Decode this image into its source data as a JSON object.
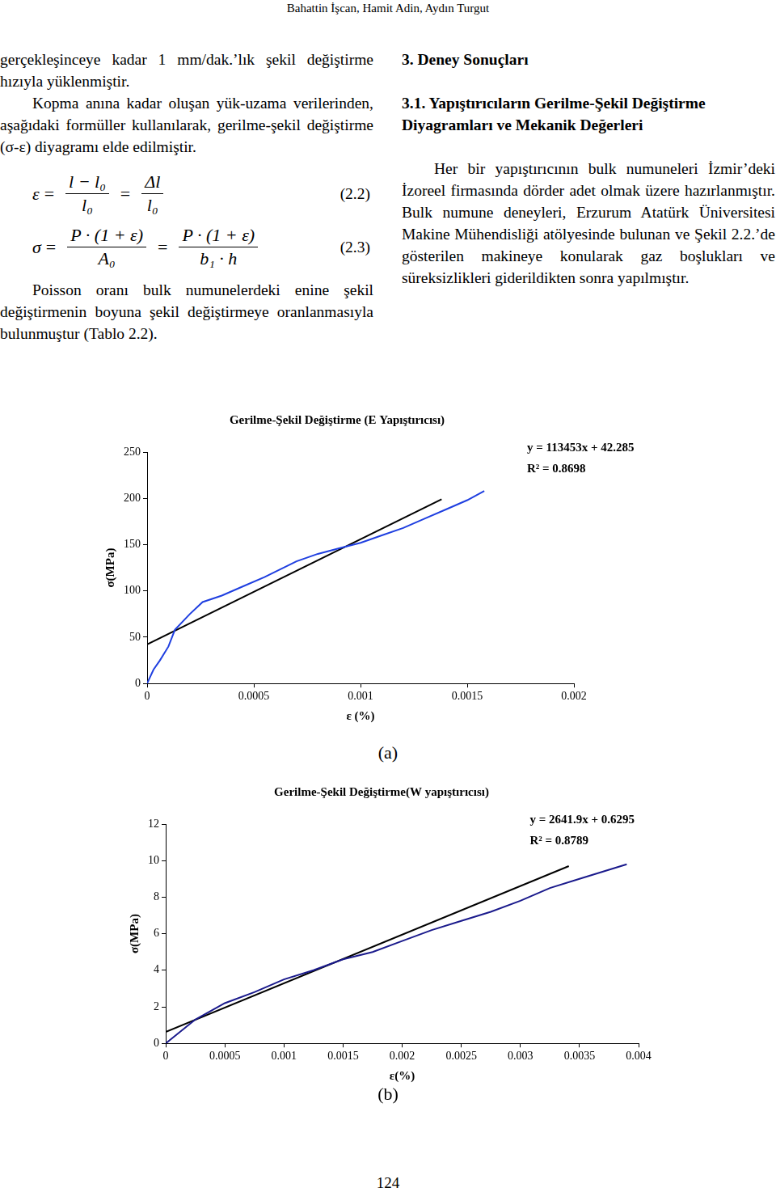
{
  "header": "Bahattin İşcan, Hamit Adin, Aydın Turgut",
  "left_column": {
    "p1": "gerçekleşinceye kadar 1 mm/dak.’lık şekil değiştirme hızıyla yüklenmiştir.",
    "p2": "Kopma anına kadar oluşan yük-uzama verilerinden, aşağıdaki formüller kullanılarak, gerilme-şekil değiştirme (σ-ε) diyagramı elde edilmiştir.",
    "equations": [
      {
        "lhs": "ε",
        "terms": [
          {
            "num": "l − l₀",
            "den": "l₀"
          },
          {
            "num": "Δl",
            "den": "l₀"
          }
        ],
        "number": "(2.2)"
      },
      {
        "lhs": "σ",
        "terms": [
          {
            "num": "P · (1 + ε)",
            "den": "A₀"
          },
          {
            "num": "P · (1 + ε)",
            "den": "b₁ · h"
          }
        ],
        "number": "(2.3)"
      }
    ],
    "p3": "Poisson oranı bulk numunelerdeki enine şekil değiştirmenin boyuna şekil değiştirmeye oranlanmasıyla bulunmuştur (Tablo 2.2)."
  },
  "right_column": {
    "heading": "3. Deney Sonuçları",
    "subheading": "3.1. Yapıştırıcıların Gerilme-Şekil Değiştirme Diyagramları ve Mekanik Değerleri",
    "p1": "Her bir yapıştırıcının bulk numuneleri İzmir’deki İzoreel firmasında dörder adet olmak üzere hazırlanmıştır. Bulk numune deneyleri, Erzurum Atatürk Üniversitesi Makine Mühendisliği atölyesinde bulunan ve Şekil 2.2.’de gösterilen makineye konularak gaz boşlukları ve süreksizlikleri giderildikten sonra yapılmıştır."
  },
  "chart_data": [
    {
      "type": "line",
      "title": "Gerilme-Şekil Değiştirme (E Yapıştırıcısı)",
      "x_label": "ε (%)",
      "y_label": "σ(MPa)",
      "caption": "(a)",
      "annotations": [
        "y = 113453x + 42.285",
        "R² = 0.8698"
      ],
      "xlim": [
        0,
        0.002
      ],
      "xticks": [
        0,
        0.0005,
        0.001,
        0.0015,
        0.002
      ],
      "ylim": [
        0,
        250
      ],
      "yticks": [
        0,
        50,
        100,
        150,
        200,
        250
      ],
      "grid": false,
      "series": [
        {
          "color": "#1f3fe0",
          "marker": "none",
          "line_style": "solid",
          "x": [
            0,
            3e-05,
            6e-05,
            0.0001,
            0.00013,
            0.0002,
            0.00026,
            0.00035,
            0.00045,
            0.00055,
            0.0007,
            0.0008,
            0.0009,
            0.001,
            0.0011,
            0.0012,
            0.0013,
            0.0014,
            0.0015,
            0.00158
          ],
          "values": [
            0,
            15,
            25,
            40,
            58,
            75,
            88,
            95,
            105,
            115,
            132,
            140,
            146,
            152,
            160,
            168,
            178,
            188,
            198,
            208
          ]
        },
        {
          "color": "#000000",
          "marker": "none",
          "line_style": "solid",
          "x": [
            0,
            0.00138
          ],
          "values": [
            42.3,
            199
          ]
        }
      ]
    },
    {
      "type": "line",
      "title": "Gerilme-Şekil Değiştirme(W yapıştırıcısı)",
      "x_label": "ε(%)",
      "y_label": "σ(MPa)",
      "caption": "(b)",
      "annotations": [
        "y = 2641.9x + 0.6295",
        "R² = 0.8789"
      ],
      "xlim": [
        0,
        0.004
      ],
      "xticks": [
        0,
        0.0005,
        0.001,
        0.0015,
        0.002,
        0.0025,
        0.003,
        0.0035,
        0.004
      ],
      "ylim": [
        0,
        12
      ],
      "yticks": [
        0,
        2,
        4,
        6,
        8,
        10,
        12
      ],
      "grid": false,
      "series": [
        {
          "color": "#1a1a8c",
          "marker": "none",
          "line_style": "solid",
          "x": [
            0,
            0.00025,
            0.0005,
            0.00075,
            0.001,
            0.00125,
            0.0015,
            0.00175,
            0.002,
            0.00225,
            0.0025,
            0.00275,
            0.003,
            0.00325,
            0.0035,
            0.00375,
            0.0039
          ],
          "values": [
            0,
            1.3,
            2.2,
            2.8,
            3.5,
            4.0,
            4.6,
            5.0,
            5.6,
            6.2,
            6.7,
            7.2,
            7.8,
            8.5,
            9.0,
            9.5,
            9.8
          ]
        },
        {
          "color": "#000000",
          "marker": "none",
          "line_style": "solid",
          "x": [
            0,
            0.00341
          ],
          "values": [
            0.63,
            9.7
          ]
        }
      ]
    }
  ],
  "page_number": "124"
}
